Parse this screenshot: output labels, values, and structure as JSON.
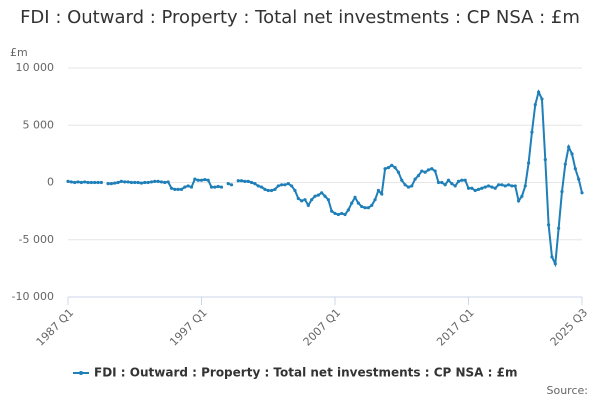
{
  "chart_data": {
    "type": "line",
    "title": "FDI : Outward : Property : Total net investments : CP NSA : £m",
    "y_axis_label": "£m",
    "source": "Source:",
    "categories": [
      "1987 Q1",
      null,
      null,
      null,
      null,
      null,
      null,
      null,
      null,
      null,
      null,
      null,
      null,
      null,
      null,
      null,
      null,
      null,
      null,
      null,
      null,
      null,
      null,
      null,
      null,
      null,
      null,
      null,
      null,
      null,
      null,
      null,
      null,
      null,
      null,
      null,
      null,
      null,
      null,
      null,
      "1997 Q1",
      null,
      null,
      null,
      null,
      null,
      null,
      null,
      null,
      null,
      null,
      null,
      null,
      null,
      null,
      null,
      null,
      null,
      null,
      null,
      null,
      null,
      null,
      null,
      null,
      null,
      null,
      null,
      null,
      null,
      null,
      null,
      null,
      null,
      null,
      null,
      null,
      null,
      null,
      null,
      "2007 Q1",
      null,
      null,
      null,
      null,
      null,
      null,
      null,
      null,
      null,
      null,
      null,
      null,
      null,
      null,
      null,
      null,
      null,
      null,
      null,
      null,
      null,
      null,
      null,
      null,
      null,
      null,
      null,
      null,
      null,
      null,
      null,
      null,
      null,
      null,
      null,
      null,
      null,
      null,
      null,
      "2017 Q1",
      null,
      null,
      null,
      null,
      null,
      null,
      null,
      null,
      null,
      null,
      null,
      null,
      null,
      null,
      null,
      null,
      null,
      null,
      null,
      null,
      null,
      null,
      null,
      null,
      null,
      null,
      null,
      null,
      null,
      null,
      null,
      null,
      null,
      "2025 Q3"
    ],
    "series": [
      {
        "name": "FDI : Outward : Property : Total net investments : CP NSA : £m",
        "color": "#1f7fb8",
        "values": [
          100,
          50,
          0,
          50,
          0,
          50,
          0,
          0,
          0,
          0,
          0,
          null,
          -100,
          -100,
          -50,
          0,
          100,
          50,
          50,
          0,
          0,
          0,
          -50,
          0,
          0,
          50,
          100,
          100,
          50,
          0,
          50,
          -500,
          -600,
          -600,
          -600,
          -400,
          -300,
          -400,
          300,
          200,
          200,
          250,
          200,
          -400,
          -400,
          -350,
          -400,
          null,
          -100,
          -200,
          null,
          150,
          150,
          100,
          100,
          0,
          -100,
          -300,
          -400,
          -600,
          -700,
          -700,
          -600,
          -300,
          -200,
          -200,
          -100,
          -300,
          -700,
          -1400,
          -1600,
          -1500,
          -2000,
          -1500,
          -1200,
          -1100,
          -900,
          -1200,
          -1500,
          -2500,
          -2700,
          -2800,
          -2700,
          -2800,
          -2400,
          -1800,
          -1300,
          -1800,
          -2100,
          -2200,
          -2200,
          -2000,
          -1500,
          -700,
          -1000,
          1200,
          1300,
          1500,
          1300,
          900,
          200,
          -200,
          -400,
          -300,
          300,
          600,
          1000,
          900,
          1100,
          1200,
          1000,
          0,
          0,
          -200,
          200,
          -100,
          -300,
          100,
          200,
          200,
          -500,
          -500,
          -700,
          -600,
          -500,
          -400,
          -300,
          -400,
          -500,
          -200,
          -200,
          -300,
          -200,
          -300,
          -300,
          -1600,
          -1200,
          -300,
          1700,
          4400,
          6800,
          7900,
          7300,
          2000,
          -3700,
          -6500,
          -7100,
          -4000,
          -800,
          1600,
          3100,
          2500,
          1200,
          300,
          -900
        ]
      }
    ],
    "ylim": [
      -10000,
      10000
    ],
    "yticks": [
      {
        "value": -10000,
        "label": "-10 000"
      },
      {
        "value": -5000,
        "label": "-5 000"
      },
      0,
      {
        "value": 5000,
        "label": "5 000"
      },
      {
        "value": 10000,
        "label": "10 000"
      }
    ],
    "grid": true
  }
}
